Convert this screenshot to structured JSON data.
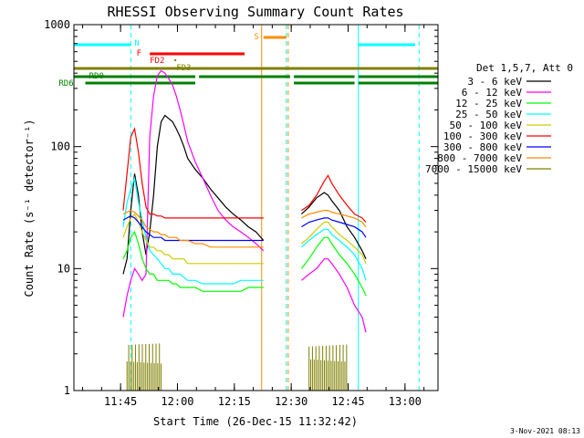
{
  "chart_data": {
    "type": "line",
    "title": "RHESSI Observing Summary Count Rates",
    "xlabel": "Start Time (26-Dec-15 11:32:42)",
    "ylabel": "Count Rate (s⁻¹ detector⁻¹)",
    "yscale": "log",
    "ylim": [
      1,
      1000
    ],
    "xlim_minutes": [
      0,
      96
    ],
    "x_ticks": [
      "11:45",
      "12:00",
      "12:15",
      "12:30",
      "12:45",
      "13:00"
    ],
    "y_ticks": [
      "1",
      "10",
      "100",
      "1000"
    ],
    "footer_date": "3-Nov-2021 08:13",
    "legend": {
      "header": "Det 1,5,7, Att 0",
      "position": "right"
    },
    "series": [
      {
        "name": "3 - 6 keV",
        "color": "#000000",
        "t": [
          13,
          14,
          15,
          16,
          17,
          18,
          19,
          20,
          21,
          22,
          23,
          24,
          25,
          26,
          27,
          28,
          29,
          30,
          32,
          34,
          36,
          38,
          40,
          42,
          44,
          46,
          48,
          50,
          60,
          62,
          64,
          66,
          67,
          68,
          70,
          72,
          74,
          76,
          77
        ],
        "values": [
          9,
          12,
          30,
          60,
          40,
          20,
          13,
          20,
          40,
          100,
          160,
          180,
          170,
          160,
          140,
          120,
          100,
          80,
          65,
          55,
          45,
          38,
          32,
          28,
          25,
          22,
          20,
          17,
          28,
          32,
          38,
          42,
          40,
          36,
          30,
          22,
          18,
          14,
          12
        ]
      },
      {
        "name": "6 - 12 keV",
        "color": "#ff00ff",
        "t": [
          13,
          14,
          15,
          16,
          17,
          18,
          19,
          20,
          21,
          22,
          23,
          24,
          25,
          26,
          27,
          28,
          29,
          30,
          32,
          34,
          36,
          38,
          40,
          42,
          44,
          46,
          48,
          50,
          60,
          62,
          64,
          66,
          67,
          68,
          70,
          72,
          74,
          76,
          77
        ],
        "values": [
          4,
          6,
          8,
          10,
          9,
          8,
          9,
          120,
          260,
          380,
          420,
          400,
          360,
          320,
          260,
          200,
          150,
          110,
          75,
          55,
          40,
          30,
          25,
          22,
          20,
          18,
          16,
          14,
          8,
          9,
          10,
          12,
          12,
          11,
          9,
          7,
          5,
          4,
          3
        ]
      },
      {
        "name": "12 - 25 keV",
        "color": "#00ff00",
        "t": [
          13,
          14,
          15,
          16,
          17,
          18,
          19,
          20,
          21,
          22,
          23,
          24,
          25,
          26,
          27,
          28,
          29,
          30,
          32,
          34,
          36,
          38,
          40,
          42,
          44,
          46,
          48,
          50,
          60,
          62,
          64,
          66,
          67,
          68,
          70,
          72,
          74,
          76,
          77
        ],
        "values": [
          12,
          14,
          18,
          20,
          16,
          12,
          10,
          9,
          9,
          8,
          8,
          8,
          8,
          7.5,
          7.5,
          7,
          7,
          7,
          7,
          6.5,
          6.5,
          6.5,
          6.5,
          6.5,
          6.5,
          7,
          7,
          7,
          10,
          12,
          15,
          18,
          18,
          16,
          13,
          11,
          9,
          7,
          6
        ]
      },
      {
        "name": "25 - 50 keV",
        "color": "#00ffff",
        "t": [
          13,
          14,
          15,
          16,
          17,
          18,
          19,
          20,
          21,
          22,
          23,
          24,
          25,
          26,
          27,
          28,
          29,
          30,
          32,
          34,
          36,
          38,
          40,
          42,
          44,
          46,
          48,
          50,
          60,
          62,
          64,
          66,
          67,
          68,
          70,
          72,
          74,
          76,
          77
        ],
        "values": [
          22,
          35,
          45,
          55,
          35,
          25,
          18,
          14,
          13,
          12,
          11,
          10,
          10,
          9,
          9,
          9,
          8.5,
          8,
          8,
          7.5,
          7.5,
          7.5,
          7.5,
          7.5,
          8,
          8,
          8,
          8,
          15,
          17,
          19,
          21,
          21,
          19,
          17,
          15,
          13,
          10,
          8
        ]
      },
      {
        "name": "50 - 100 keV",
        "color": "#cccc00",
        "t": [
          13,
          14,
          15,
          16,
          17,
          18,
          19,
          20,
          21,
          22,
          23,
          24,
          25,
          26,
          27,
          28,
          29,
          30,
          32,
          34,
          36,
          38,
          40,
          42,
          44,
          46,
          48,
          50,
          60,
          62,
          64,
          66,
          67,
          68,
          70,
          72,
          74,
          76,
          77
        ],
        "values": [
          18,
          22,
          26,
          28,
          24,
          20,
          17,
          15,
          15,
          14,
          14,
          13,
          13,
          12,
          12,
          12,
          12,
          11,
          11,
          11,
          11,
          11,
          11,
          11,
          11,
          11,
          11,
          11,
          16,
          18,
          21,
          24,
          24,
          22,
          19,
          17,
          15,
          13,
          11
        ]
      },
      {
        "name": "100 - 300 keV",
        "color": "#ff0000",
        "t": [
          13,
          14,
          15,
          16,
          17,
          18,
          19,
          20,
          21,
          22,
          23,
          24,
          25,
          26,
          27,
          28,
          29,
          30,
          32,
          34,
          36,
          38,
          40,
          42,
          44,
          46,
          48,
          50,
          60,
          62,
          64,
          66,
          67,
          68,
          70,
          72,
          74,
          76,
          77
        ],
        "values": [
          30,
          60,
          120,
          140,
          90,
          50,
          32,
          28,
          28,
          27,
          27,
          26,
          26,
          26,
          26,
          26,
          26,
          26,
          26,
          26,
          26,
          26,
          26,
          26,
          26,
          26,
          26,
          26,
          30,
          33,
          40,
          52,
          58,
          50,
          40,
          33,
          28,
          26,
          24
        ]
      },
      {
        "name": "300 - 800 keV",
        "color": "#0000ff",
        "t": [
          13,
          14,
          15,
          16,
          17,
          18,
          19,
          20,
          21,
          22,
          23,
          24,
          25,
          26,
          27,
          28,
          29,
          30,
          32,
          34,
          36,
          38,
          40,
          42,
          44,
          46,
          48,
          50,
          60,
          62,
          64,
          66,
          67,
          68,
          70,
          72,
          74,
          76,
          77
        ],
        "values": [
          25,
          26,
          27,
          26,
          24,
          22,
          20,
          19,
          18,
          18,
          18,
          17,
          17,
          17,
          17,
          17,
          17,
          17,
          17,
          17,
          17,
          17,
          17,
          17,
          17,
          17,
          17,
          17,
          22,
          24,
          25,
          26,
          26,
          25,
          24,
          23,
          22,
          20,
          18
        ]
      },
      {
        "name": "800 - 7000 keV",
        "color": "#ff8c00",
        "t": [
          13,
          14,
          15,
          16,
          17,
          18,
          19,
          20,
          21,
          22,
          23,
          24,
          25,
          26,
          27,
          28,
          29,
          30,
          32,
          34,
          36,
          38,
          40,
          42,
          44,
          46,
          48,
          50,
          60,
          62,
          64,
          66,
          67,
          68,
          70,
          72,
          74,
          76,
          77
        ],
        "values": [
          28,
          29,
          30,
          29,
          27,
          25,
          22,
          21,
          20,
          20,
          19,
          19,
          18,
          18,
          18,
          17,
          17,
          17,
          16,
          16,
          15,
          15,
          15,
          15,
          15,
          15,
          15,
          15,
          26,
          28,
          29,
          30,
          30,
          29,
          28,
          27,
          26,
          24,
          22
        ]
      },
      {
        "name": "7000 - 15000 keV",
        "color": "#808000",
        "t": [],
        "values": []
      }
    ],
    "annotations": {
      "flags": [
        "N",
        "F",
        "FD2",
        "FD3",
        "S",
        "RD0",
        "RD6"
      ],
      "flag_colors": {
        "N": "#00ffff",
        "F": "#ff0000",
        "FD2": "#ff0000",
        "FD3": "#808000",
        "S": "#ff8c00",
        "RD0": "#008000",
        "RD6": "#008000",
        "Att": "#808000"
      },
      "spans_minutes": {
        "N": [
          [
            0,
            15
          ],
          [
            75,
            90
          ]
        ],
        "F": [
          [
            20,
            45
          ]
        ],
        "FD3": [
          [
            0,
            96
          ]
        ],
        "S": [
          [
            50,
            56
          ]
        ],
        "RD0": [
          [
            0,
            32
          ],
          [
            33,
            57
          ],
          [
            58,
            74
          ],
          [
            75,
            96
          ]
        ],
        "RD6": [
          [
            3,
            32
          ],
          [
            58,
            74
          ],
          [
            75,
            96
          ]
        ]
      },
      "saa_vlines_minutes": [
        15,
        56,
        91
      ],
      "night_vlines_minutes": [
        0,
        75
      ],
      "orbit_boundary_minutes": [
        50
      ],
      "olive_spikes_ranges_minutes": [
        [
          14,
          23
        ],
        [
          62,
          72
        ]
      ]
    }
  }
}
